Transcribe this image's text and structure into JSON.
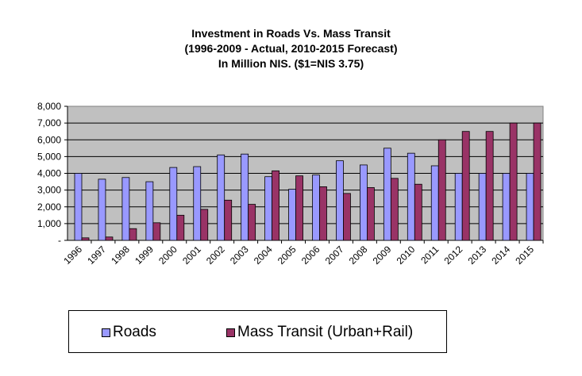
{
  "chart_data": {
    "type": "bar",
    "title": [
      "Investment in Roads Vs. Mass Transit",
      "(1996-2009 - Actual, 2010-2015 Forecast)",
      "In Million NIS. ($1=NIS 3.75)"
    ],
    "categories": [
      "1996",
      "1997",
      "1998",
      "1999",
      "2000",
      "2001",
      "2002",
      "2003",
      "2004",
      "2005",
      "2006",
      "2007",
      "2008",
      "2009",
      "2010",
      "2011",
      "2012",
      "2013",
      "2014",
      "2015"
    ],
    "series": [
      {
        "name": "Roads",
        "color": "#9999ff",
        "values": [
          4000,
          3650,
          3750,
          3500,
          4350,
          4400,
          5100,
          5150,
          3800,
          3050,
          3900,
          4750,
          4500,
          5500,
          5200,
          4450,
          4000,
          4000,
          4000,
          4000
        ]
      },
      {
        "name": "Mass Transit (Urban+Rail)",
        "color": "#993366",
        "values": [
          150,
          200,
          700,
          1050,
          1500,
          1850,
          2400,
          2150,
          4150,
          3850,
          3200,
          2800,
          3150,
          3700,
          3350,
          6000,
          6500,
          6500,
          7000,
          7000
        ]
      }
    ],
    "yticks": [
      "-",
      "1,000",
      "2,000",
      "3,000",
      "4,000",
      "5,000",
      "6,000",
      "7,000",
      "8,000"
    ],
    "ylim": [
      0,
      8000
    ],
    "grid": true,
    "plot_background": "#c0c0c0",
    "legend_position": "bottom"
  }
}
